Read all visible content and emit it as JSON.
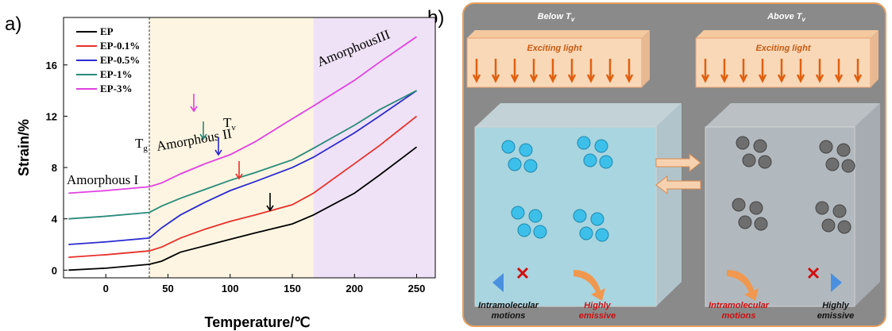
{
  "panel_labels": [
    "a)",
    "b)"
  ],
  "chart_data": {
    "type": "line",
    "x_label": "Temperature/℃",
    "y_label": "Strain/%",
    "x": [
      -30,
      0,
      35,
      45,
      60,
      80,
      100,
      120,
      150,
      167,
      200,
      220,
      250
    ],
    "series": [
      {
        "name": "EP",
        "color": "#000000",
        "values": [
          0,
          0.15,
          0.45,
          0.7,
          1.4,
          1.9,
          2.4,
          2.9,
          3.6,
          4.3,
          6.0,
          7.4,
          9.6
        ]
      },
      {
        "name": "EP-0.1%",
        "color": "#e8312a",
        "values": [
          1.0,
          1.2,
          1.5,
          1.8,
          2.5,
          3.2,
          3.8,
          4.3,
          5.1,
          6.0,
          8.3,
          9.7,
          12.0
        ]
      },
      {
        "name": "EP-0.5%",
        "color": "#2b2bd0",
        "values": [
          2.0,
          2.2,
          2.5,
          3.3,
          4.3,
          5.3,
          6.2,
          6.9,
          8.0,
          8.8,
          10.7,
          12.0,
          14.0
        ]
      },
      {
        "name": "EP-1%",
        "color": "#2a8a7a",
        "values": [
          4.0,
          4.2,
          4.5,
          5.0,
          5.6,
          6.3,
          7.0,
          7.6,
          8.6,
          9.5,
          11.3,
          12.5,
          14.0
        ]
      },
      {
        "name": "EP-3%",
        "color": "#e040e0",
        "values": [
          6.0,
          6.2,
          6.5,
          6.8,
          7.5,
          8.3,
          9.0,
          10.0,
          11.8,
          12.8,
          14.8,
          16.2,
          18.2
        ]
      }
    ],
    "xlim": [
      -34,
      265
    ],
    "ylim": [
      -0.6,
      19.7
    ],
    "xticks": [
      0,
      50,
      100,
      150,
      200,
      250
    ],
    "yticks": [
      0,
      4,
      8,
      12,
      16
    ],
    "regions": [
      {
        "from": 35,
        "to": 167,
        "color": "#fdf5e2"
      },
      {
        "from": 167,
        "to": 265,
        "color": "#efe2f7"
      }
    ],
    "vlines": [
      35
    ],
    "annotations": [
      {
        "text": "Amorphous I"
      },
      {
        "text": "Amorphous II"
      },
      {
        "text": "AmorphousIII"
      },
      {
        "text": "T",
        "sub": "g"
      },
      {
        "text": "T",
        "sub": "v"
      }
    ]
  },
  "diagram": {
    "left": {
      "title": "Below T",
      "title_sub": "v",
      "light": "Exciting light",
      "motion": [
        "Intramolecular",
        "motions"
      ],
      "emission": [
        "Highly",
        "emissive"
      ]
    },
    "right": {
      "title": "Above T",
      "title_sub": "v",
      "light": "Exciting light",
      "motion": [
        "Intramolecular",
        "motions"
      ],
      "emission": [
        "Highly",
        "emissive"
      ]
    }
  }
}
